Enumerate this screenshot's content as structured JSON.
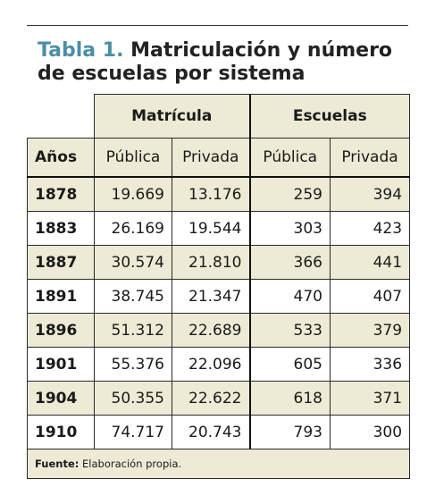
{
  "title": {
    "lead": "Tabla 1.",
    "text": "Matriculación y número de escuelas por sistema"
  },
  "groups": {
    "matricula": "Matrícula",
    "escuelas": "Escuelas"
  },
  "columns": {
    "years": "Años",
    "m_publica": "Pública",
    "m_privada": "Privada",
    "e_publica": "Pública",
    "e_privada": "Privada"
  },
  "rows": [
    {
      "year": "1878",
      "m_pub": "19.669",
      "m_priv": "13.176",
      "e_pub": "259",
      "e_priv": "394"
    },
    {
      "year": "1883",
      "m_pub": "26.169",
      "m_priv": "19.544",
      "e_pub": "303",
      "e_priv": "423"
    },
    {
      "year": "1887",
      "m_pub": "30.574",
      "m_priv": "21.810",
      "e_pub": "366",
      "e_priv": "441"
    },
    {
      "year": "1891",
      "m_pub": "38.745",
      "m_priv": "21.347",
      "e_pub": "470",
      "e_priv": "407"
    },
    {
      "year": "1896",
      "m_pub": "51.312",
      "m_priv": "22.689",
      "e_pub": "533",
      "e_priv": "379"
    },
    {
      "year": "1901",
      "m_pub": "55.376",
      "m_priv": "22.096",
      "e_pub": "605",
      "e_priv": "336"
    },
    {
      "year": "1904",
      "m_pub": "50.355",
      "m_priv": "22.622",
      "e_pub": "618",
      "e_priv": "371"
    },
    {
      "year": "1910",
      "m_pub": "74.717",
      "m_priv": "20.743",
      "e_pub": "793",
      "e_priv": "300"
    }
  ],
  "footnote": {
    "label": "Fuente:",
    "text": "Elaboración propia."
  },
  "colors": {
    "header_bg": "#edead5",
    "title_accent": "#4a8fa6"
  }
}
